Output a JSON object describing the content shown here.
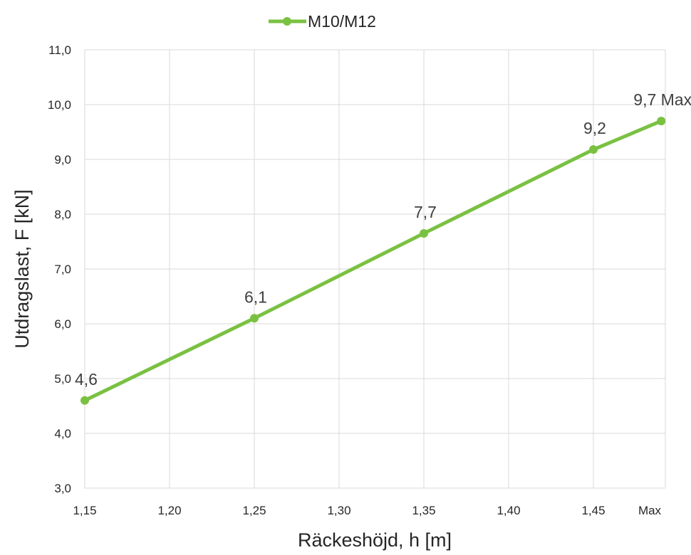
{
  "chart_data": {
    "type": "line",
    "xlabel": "Räckeshöjd, h [m]",
    "ylabel": "Utdragslast, F [kN]",
    "x_ticks": [
      "1,15",
      "1,20",
      "1,25",
      "1,30",
      "1,35",
      "1,40",
      "1,45",
      "Max"
    ],
    "y_ticks": [
      "3,0",
      "4,0",
      "5,0",
      "6,0",
      "7,0",
      "8,0",
      "9,0",
      "10,0",
      "11,0"
    ],
    "xlim": [
      1.15,
      1.5
    ],
    "ylim": [
      3.0,
      11.0
    ],
    "grid": true,
    "legend_position": "top",
    "series": [
      {
        "name": "M10/M12",
        "color": "#7ac142",
        "points": [
          {
            "x": 1.15,
            "y": 4.6,
            "label": "4,6"
          },
          {
            "x": 1.25,
            "y": 6.1,
            "label": "6,1"
          },
          {
            "x": 1.35,
            "y": 7.65,
            "label": "7,7"
          },
          {
            "x": 1.45,
            "y": 9.18,
            "label": "9,2"
          },
          {
            "x": 1.49,
            "y": 9.7,
            "label": "9,7 Max"
          }
        ]
      }
    ]
  }
}
